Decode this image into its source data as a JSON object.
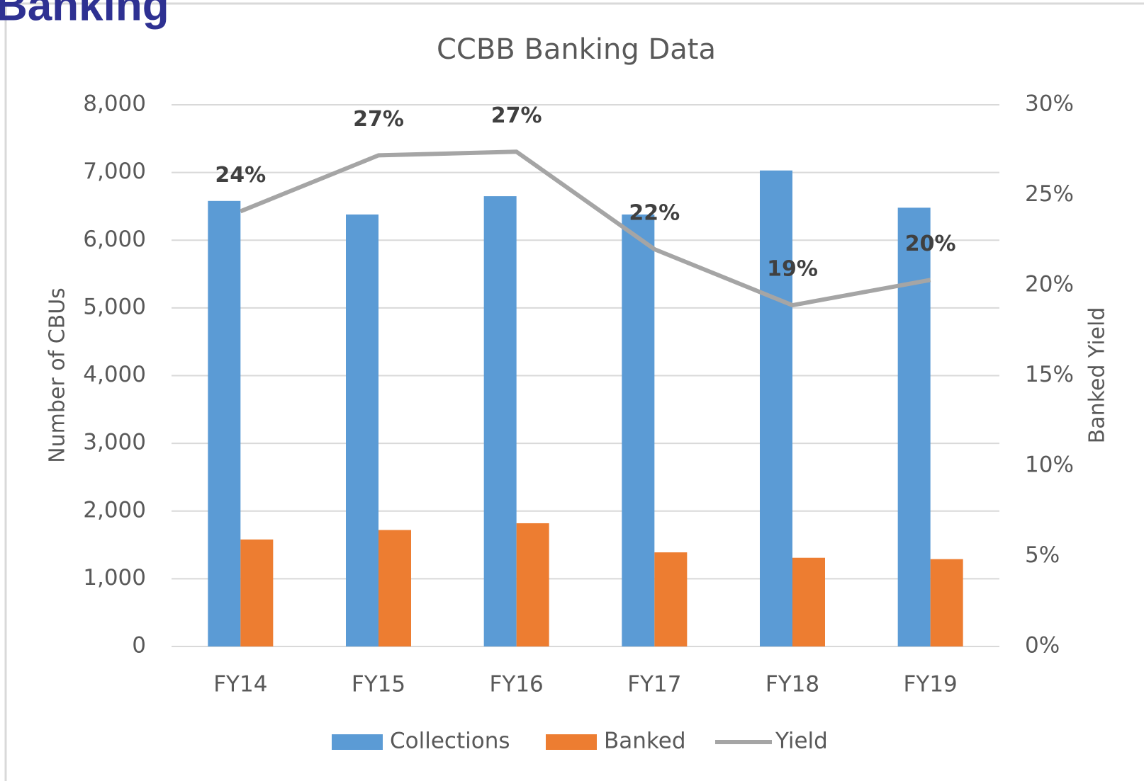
{
  "page_title": "Banking",
  "chart_data": {
    "type": "bar-line",
    "title": "CCBB Banking Data",
    "y_label": "Number of CBUs",
    "y2_label": "Banked Yield",
    "categories": [
      "FY14",
      "FY15",
      "FY16",
      "FY17",
      "FY18",
      "FY19"
    ],
    "series": [
      {
        "name": "Collections",
        "type": "bar",
        "color": "#5b9bd5",
        "values": [
          6580,
          6380,
          6650,
          6380,
          7030,
          6480
        ]
      },
      {
        "name": "Banked",
        "type": "bar",
        "color": "#ed7d31",
        "values": [
          1580,
          1720,
          1820,
          1390,
          1310,
          1290
        ]
      },
      {
        "name": "Yield",
        "type": "line",
        "axis": "y2",
        "color": "#a5a5a5",
        "values": [
          24.1,
          27.2,
          27.4,
          22.0,
          18.9,
          20.3
        ],
        "value_labels": [
          "24%",
          "27%",
          "27%",
          "22%",
          "19%",
          "20%"
        ]
      }
    ],
    "ylim": [
      0,
      8000
    ],
    "yticks": [
      0,
      {
        "value": 1000,
        "label": "1,000"
      },
      {
        "value": 2000,
        "label": "2,000"
      },
      {
        "value": 3000,
        "label": "3,000"
      },
      {
        "value": 4000,
        "label": "4,000"
      },
      {
        "value": 5000,
        "label": "5,000"
      },
      {
        "value": 6000,
        "label": "6,000"
      },
      {
        "value": 7000,
        "label": "7,000"
      },
      {
        "value": 8000,
        "label": "8,000"
      }
    ],
    "y2lim": [
      0,
      30
    ],
    "y2ticks": [
      {
        "value": 0,
        "label": "0%"
      },
      {
        "value": 5,
        "label": "5%"
      },
      {
        "value": 10,
        "label": "10%"
      },
      {
        "value": 15,
        "label": "15%"
      },
      {
        "value": 20,
        "label": "20%"
      },
      {
        "value": 25,
        "label": "25%"
      },
      {
        "value": 30,
        "label": "30%"
      }
    ],
    "grid": true,
    "legend": "bottom"
  }
}
